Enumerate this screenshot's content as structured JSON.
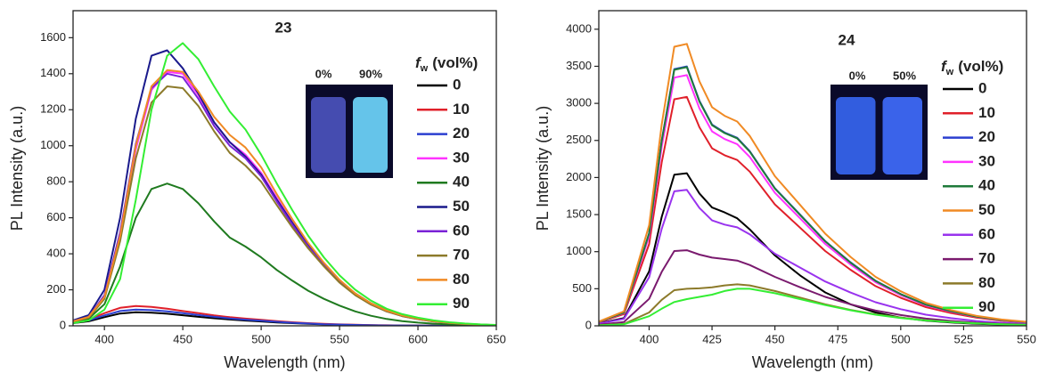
{
  "chart_data": [
    {
      "type": "line",
      "title": "23",
      "x_label": "Wavelength (nm)",
      "y_label": "PL Intensity (a.u.)",
      "legend_title": {
        "symbol": "f",
        "subscript": "w",
        "text": "(vol%)"
      },
      "inset_labels": [
        "0%",
        "90%"
      ],
      "xlim": [
        380,
        650
      ],
      "xticks": [
        400,
        450,
        500,
        550,
        600,
        650
      ],
      "ylim": [
        0,
        1750
      ],
      "yticks": [
        0,
        200,
        400,
        600,
        800,
        1000,
        1200,
        1400,
        1600
      ],
      "x": [
        380,
        390,
        400,
        410,
        420,
        430,
        440,
        450,
        460,
        470,
        480,
        490,
        500,
        510,
        520,
        530,
        540,
        550,
        560,
        570,
        580,
        590,
        600,
        610,
        620,
        630,
        640,
        650
      ],
      "series": [
        {
          "name": "0",
          "color": "#000000",
          "values": [
            15,
            25,
            48,
            68,
            75,
            73,
            67,
            59,
            50,
            42,
            35,
            29,
            24,
            19,
            15,
            11,
            8,
            6,
            4,
            3,
            2,
            1,
            1,
            0,
            0,
            0,
            0,
            0
          ]
        },
        {
          "name": "10",
          "color": "#e0202a",
          "values": [
            20,
            35,
            70,
            100,
            110,
            105,
            95,
            82,
            70,
            58,
            48,
            40,
            33,
            26,
            20,
            15,
            11,
            8,
            6,
            4,
            3,
            2,
            1,
            1,
            0,
            0,
            0,
            0
          ]
        },
        {
          "name": "20",
          "color": "#2b3fd0",
          "values": [
            18,
            30,
            58,
            82,
            90,
            87,
            80,
            70,
            60,
            50,
            41,
            34,
            28,
            22,
            17,
            13,
            9,
            7,
            5,
            3,
            2,
            2,
            1,
            1,
            0,
            0,
            0,
            0
          ]
        },
        {
          "name": "30",
          "color": "#ff33ff",
          "values": [
            25,
            50,
            160,
            490,
            980,
            1310,
            1410,
            1400,
            1280,
            1130,
            1020,
            950,
            850,
            710,
            575,
            450,
            340,
            250,
            175,
            120,
            82,
            55,
            38,
            25,
            16,
            10,
            6,
            4
          ]
        },
        {
          "name": "40",
          "color": "#1f7a1f",
          "values": [
            20,
            40,
            120,
            330,
            600,
            760,
            790,
            760,
            680,
            580,
            490,
            440,
            380,
            310,
            250,
            195,
            150,
            112,
            80,
            56,
            38,
            26,
            18,
            12,
            8,
            5,
            3,
            2
          ]
        },
        {
          "name": "50",
          "color": "#1a1a8c",
          "values": [
            30,
            60,
            200,
            600,
            1150,
            1500,
            1530,
            1430,
            1290,
            1130,
            1020,
            940,
            840,
            700,
            570,
            450,
            340,
            250,
            180,
            125,
            85,
            58,
            40,
            26,
            17,
            11,
            7,
            4
          ]
        },
        {
          "name": "60",
          "color": "#7a22d6",
          "values": [
            25,
            50,
            170,
            520,
            1010,
            1320,
            1400,
            1380,
            1260,
            1110,
            1000,
            930,
            830,
            690,
            560,
            440,
            335,
            245,
            172,
            118,
            80,
            54,
            37,
            24,
            16,
            10,
            6,
            4
          ]
        },
        {
          "name": "70",
          "color": "#8c7a2a",
          "values": [
            22,
            45,
            150,
            470,
            930,
            1240,
            1330,
            1320,
            1220,
            1080,
            960,
            890,
            800,
            670,
            545,
            430,
            330,
            240,
            170,
            118,
            80,
            54,
            37,
            24,
            16,
            10,
            6,
            4
          ]
        },
        {
          "name": "80",
          "color": "#f08a24",
          "values": [
            25,
            50,
            160,
            500,
            1000,
            1330,
            1420,
            1410,
            1300,
            1160,
            1060,
            990,
            880,
            730,
            590,
            460,
            350,
            255,
            180,
            125,
            85,
            58,
            40,
            26,
            17,
            11,
            7,
            4
          ]
        },
        {
          "name": "90",
          "color": "#33ee33",
          "values": [
            15,
            30,
            90,
            260,
            700,
            1200,
            1500,
            1570,
            1480,
            1330,
            1190,
            1090,
            950,
            790,
            640,
            500,
            380,
            280,
            200,
            140,
            95,
            65,
            45,
            30,
            20,
            13,
            8,
            5
          ]
        }
      ]
    },
    {
      "type": "line",
      "title": "24",
      "x_label": "Wavelength (nm)",
      "y_label": "PL Intensity (a.u.)",
      "legend_title": {
        "symbol": "f",
        "subscript": "w",
        "text": "(vol%)"
      },
      "inset_labels": [
        "0%",
        "50%"
      ],
      "xlim": [
        380,
        550
      ],
      "xticks": [
        400,
        425,
        450,
        475,
        500,
        525,
        550
      ],
      "ylim": [
        0,
        4250
      ],
      "yticks": [
        0,
        500,
        1000,
        1500,
        2000,
        2500,
        3000,
        3500,
        4000
      ],
      "x": [
        380,
        390,
        400,
        405,
        410,
        415,
        420,
        425,
        430,
        435,
        440,
        450,
        460,
        470,
        480,
        490,
        500,
        510,
        520,
        530,
        540,
        550
      ],
      "series": [
        {
          "name": "0",
          "color": "#000000",
          "values": [
            32,
            105,
            735,
            1470,
            2037,
            2058,
            1785,
            1596,
            1530,
            1450,
            1300,
            950,
            680,
            450,
            290,
            180,
            110,
            70,
            45,
            28,
            18,
            11
          ]
        },
        {
          "name": "10",
          "color": "#e0202a",
          "values": [
            47,
            158,
            1103,
            2205,
            3056,
            3087,
            2678,
            2394,
            2300,
            2237,
            2079,
            1638,
            1323,
            1008,
            756,
            536,
            378,
            252,
            173,
            110,
            69,
            44
          ]
        },
        {
          "name": "20",
          "color": "#2b3fd0",
          "values": [
            54,
            179,
            1250,
            2499,
            3463,
            3499,
            3035,
            2713,
            2606,
            2535,
            2356,
            1856,
            1499,
            1142,
            857,
            607,
            428,
            286,
            196,
            125,
            79,
            50
          ]
        },
        {
          "name": "30",
          "color": "#ff33ff",
          "values": [
            52,
            173,
            1208,
            2415,
            3347,
            3381,
            2933,
            2622,
            2519,
            2450,
            2277,
            1794,
            1449,
            1104,
            828,
            587,
            414,
            276,
            190,
            121,
            76,
            48
          ]
        },
        {
          "name": "40",
          "color": "#1f7a3a",
          "values": [
            53,
            178,
            1246,
            2492,
            3453,
            3489,
            3026,
            2706,
            2599,
            2528,
            2350,
            1851,
            1495,
            1139,
            854,
            605,
            427,
            285,
            196,
            125,
            78,
            50
          ]
        },
        {
          "name": "50",
          "color": "#f08a24",
          "values": [
            58,
            194,
            1358,
            2716,
            3764,
            3802,
            3298,
            2949,
            2832,
            2755,
            2561,
            2018,
            1630,
            1242,
            931,
            660,
            466,
            310,
            213,
            136,
            85,
            54
          ]
        },
        {
          "name": "60",
          "color": "#9933ee",
          "values": [
            28,
            94,
            655,
            1309,
            1814,
            1833,
            1590,
            1421,
            1365,
            1328,
            1234,
            972,
            785,
            598,
            449,
            318,
            224,
            150,
            103,
            65,
            41,
            26
          ]
        },
        {
          "name": "70",
          "color": "#7a1a6e",
          "values": [
            16,
            52,
            364,
            728,
            1009,
            1019,
            960,
            920,
            900,
            880,
            820,
            660,
            520,
            390,
            290,
            205,
            145,
            97,
            66,
            42,
            27,
            17
          ]
        },
        {
          "name": "80",
          "color": "#8c7a2a",
          "values": [
            8,
            25,
            180,
            350,
            480,
            500,
            505,
            520,
            545,
            560,
            545,
            470,
            380,
            290,
            215,
            155,
            110,
            75,
            52,
            34,
            22,
            14
          ]
        },
        {
          "name": "90",
          "color": "#33ee33",
          "values": [
            6,
            20,
            130,
            230,
            320,
            360,
            390,
            420,
            470,
            500,
            500,
            440,
            360,
            280,
            210,
            150,
            105,
            72,
            50,
            33,
            21,
            13
          ]
        }
      ]
    }
  ]
}
